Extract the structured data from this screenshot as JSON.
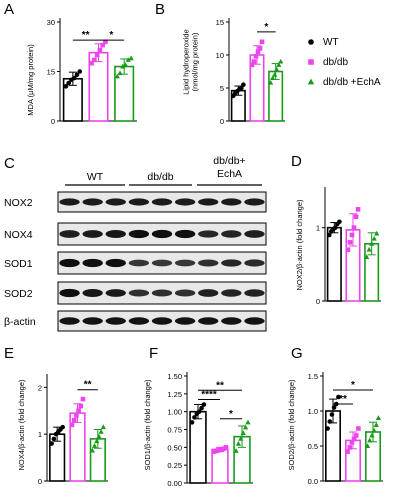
{
  "colors": {
    "wt": "#000000",
    "dbdb": "#ee44ee",
    "echa": "#1a9a1a",
    "axis": "#000000"
  },
  "legend": {
    "items": [
      {
        "label": "WT",
        "group": "wt",
        "marker": "circle"
      },
      {
        "label": "db/db",
        "group": "dbdb",
        "marker": "square"
      },
      {
        "label": "db/db +EchA",
        "group": "echa",
        "marker": "triangle"
      }
    ]
  },
  "blot": {
    "panel_label": "C",
    "groups": [
      "WT",
      "db/db",
      "db/db+\nEchA"
    ],
    "group_lines": [
      [
        "WT"
      ],
      [
        "db/db"
      ],
      [
        "db/db+",
        "EchA"
      ]
    ],
    "rows": [
      "NOX2",
      "NOX4",
      "SOD1",
      "SOD2",
      "β-actin"
    ],
    "band_intensity": [
      [
        0.85,
        0.85,
        0.85,
        0.85,
        0.85,
        0.85,
        0.85,
        0.85,
        0.85
      ],
      [
        0.8,
        0.85,
        0.9,
        1.0,
        1.0,
        1.0,
        0.7,
        0.75,
        0.8
      ],
      [
        1.0,
        1.0,
        1.0,
        0.5,
        0.5,
        0.5,
        0.6,
        0.7,
        0.65
      ],
      [
        1.0,
        0.9,
        0.85,
        0.6,
        0.6,
        0.6,
        0.8,
        0.75,
        0.75
      ],
      [
        0.95,
        0.95,
        0.95,
        0.95,
        0.95,
        0.95,
        0.95,
        0.95,
        0.95
      ]
    ]
  },
  "chart_data": [
    {
      "panel": "A",
      "type": "bar",
      "ylabel": "MDA (μM/mg protein)",
      "ylim": [
        0,
        30
      ],
      "yticks": [
        0,
        15,
        30
      ],
      "series": [
        {
          "group": "wt",
          "marker": "circle",
          "mean": 12.8,
          "sd": 2.0,
          "points": [
            10.5,
            11.5,
            12.5,
            13.0,
            14.0,
            15.0
          ]
        },
        {
          "group": "dbdb",
          "marker": "square",
          "mean": 20.7,
          "sd": 2.7,
          "points": [
            17.5,
            18.5,
            20.0,
            21.5,
            23.0,
            24.0
          ]
        },
        {
          "group": "echa",
          "marker": "triangle",
          "mean": 16.5,
          "sd": 2.3,
          "points": [
            13.5,
            14.5,
            16.5,
            17.0,
            18.5,
            19.0
          ]
        }
      ],
      "significance": [
        {
          "from": 0,
          "to": 1,
          "label": "**",
          "y": 24.5
        },
        {
          "from": 1,
          "to": 2,
          "label": "*",
          "y": 24.5
        }
      ]
    },
    {
      "panel": "B",
      "type": "bar",
      "ylabel": "Lipid hydroperoxide\n(nmol/mg protein)",
      "ylim": [
        0,
        15
      ],
      "yticks": [
        0,
        5,
        10,
        15
      ],
      "series": [
        {
          "group": "wt",
          "marker": "circle",
          "mean": 4.6,
          "sd": 0.7,
          "points": [
            3.8,
            4.2,
            4.5,
            4.8,
            5.0,
            5.5
          ]
        },
        {
          "group": "dbdb",
          "marker": "square",
          "mean": 10.0,
          "sd": 1.4,
          "points": [
            8.5,
            9.0,
            9.8,
            10.5,
            11.0,
            12.0
          ]
        },
        {
          "group": "echa",
          "marker": "triangle",
          "mean": 7.5,
          "sd": 1.2,
          "points": [
            5.8,
            6.5,
            7.0,
            7.8,
            8.5,
            9.0
          ]
        }
      ],
      "significance": [
        {
          "from": 1,
          "to": 2,
          "label": "*",
          "y": 13.5
        }
      ]
    },
    {
      "panel": "D",
      "type": "bar",
      "ylabel": "NOX2/β-actin (fold change)",
      "ylim": [
        0,
        1.5
      ],
      "yticks": [
        0,
        1
      ],
      "ytick_labels": [
        "0",
        "1"
      ],
      "series": [
        {
          "group": "wt",
          "marker": "circle",
          "mean": 1.0,
          "sd": 0.07,
          "points": [
            0.9,
            0.95,
            0.98,
            1.0,
            1.05,
            1.08
          ]
        },
        {
          "group": "dbdb",
          "marker": "square",
          "mean": 0.97,
          "sd": 0.22,
          "points": [
            0.7,
            0.8,
            0.9,
            1.0,
            1.15,
            1.25
          ]
        },
        {
          "group": "echa",
          "marker": "triangle",
          "mean": 0.78,
          "sd": 0.15,
          "points": [
            0.6,
            0.7,
            0.78,
            0.85,
            0.92
          ]
        }
      ],
      "significance": []
    },
    {
      "panel": "E",
      "type": "bar",
      "ylabel": "NOX4/β-actin (fold change)",
      "ylim": [
        0,
        2.2
      ],
      "yticks": [
        0,
        1,
        2
      ],
      "series": [
        {
          "group": "wt",
          "marker": "circle",
          "mean": 1.0,
          "sd": 0.15,
          "points": [
            0.8,
            0.9,
            1.0,
            1.05,
            1.1,
            1.15
          ]
        },
        {
          "group": "dbdb",
          "marker": "square",
          "mean": 1.45,
          "sd": 0.2,
          "points": [
            1.2,
            1.3,
            1.4,
            1.5,
            1.6,
            1.75
          ]
        },
        {
          "group": "echa",
          "marker": "triangle",
          "mean": 0.9,
          "sd": 0.2,
          "points": [
            0.65,
            0.75,
            0.85,
            0.95,
            1.05,
            1.15
          ]
        }
      ],
      "significance": [
        {
          "from": 1,
          "to": 2,
          "label": "**",
          "y": 1.95
        }
      ]
    },
    {
      "panel": "F",
      "type": "bar",
      "ylabel": "SOD1/β-actin (fold change)",
      "ylim": [
        0,
        1.5
      ],
      "yticks": [
        0,
        0.25,
        0.5,
        0.75,
        1.0,
        1.25,
        1.5
      ],
      "ytick_labels": [
        "0.00",
        "0.25",
        "0.50",
        "0.75",
        "1.00",
        "1.25",
        "1.50"
      ],
      "series": [
        {
          "group": "wt",
          "marker": "circle",
          "mean": 1.0,
          "sd": 0.1,
          "points": [
            0.85,
            0.92,
            0.97,
            1.0,
            1.05,
            1.1
          ]
        },
        {
          "group": "dbdb",
          "marker": "square",
          "mean": 0.47,
          "sd": 0.03,
          "points": [
            0.44,
            0.45,
            0.46,
            0.47,
            0.48,
            0.5
          ]
        },
        {
          "group": "echa",
          "marker": "triangle",
          "mean": 0.65,
          "sd": 0.15,
          "points": [
            0.45,
            0.55,
            0.62,
            0.7,
            0.78,
            0.85
          ]
        }
      ],
      "significance": [
        {
          "from": 0,
          "to": 1,
          "label": "****",
          "y": 1.17
        },
        {
          "from": 0,
          "to": 2,
          "label": "**",
          "y": 1.3
        },
        {
          "from": 1,
          "to": 2,
          "label": "*",
          "y": 0.9
        }
      ]
    },
    {
      "panel": "G",
      "type": "bar",
      "ylabel": "SOD2/β-actin (fold change)",
      "ylim": [
        0,
        1.5
      ],
      "yticks": [
        0,
        0.5,
        1.0,
        1.5
      ],
      "ytick_labels": [
        "0.0",
        "0.5",
        "1.0",
        "1.5"
      ],
      "series": [
        {
          "group": "wt",
          "marker": "circle",
          "mean": 1.0,
          "sd": 0.17,
          "points": [
            0.75,
            0.85,
            0.95,
            1.05,
            1.1,
            1.2
          ]
        },
        {
          "group": "dbdb",
          "marker": "square",
          "mean": 0.58,
          "sd": 0.12,
          "points": [
            0.42,
            0.48,
            0.55,
            0.6,
            0.65,
            0.75
          ]
        },
        {
          "group": "echa",
          "marker": "triangle",
          "mean": 0.7,
          "sd": 0.14,
          "points": [
            0.5,
            0.58,
            0.65,
            0.72,
            0.8,
            0.9
          ]
        }
      ],
      "significance": [
        {
          "from": 0,
          "to": 1,
          "label": "**",
          "y": 1.1
        },
        {
          "from": 0,
          "to": 2,
          "label": "*",
          "y": 1.3
        }
      ]
    }
  ]
}
